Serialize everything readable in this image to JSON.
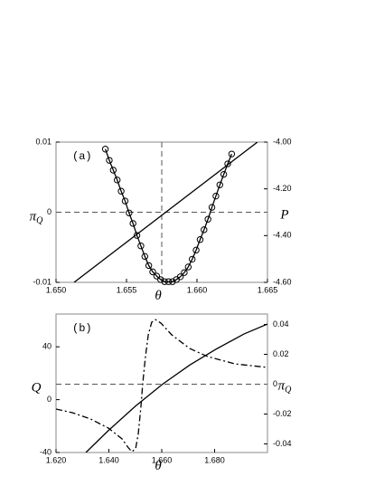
{
  "chart_data": [
    {
      "type": "line",
      "annotation": "(a)",
      "xlabel": "θ",
      "ylabel": "π",
      "ylabel_sub": "Q",
      "y2label": "P",
      "xlim": [
        1.65,
        1.665
      ],
      "xticks": [
        {
          "value": 1.65,
          "label": "1.650"
        },
        {
          "value": 1.655,
          "label": "1.655"
        },
        {
          "value": 1.66,
          "label": "1.660"
        },
        {
          "value": 1.665,
          "label": "1.665"
        }
      ],
      "ylim": [
        -0.01,
        0.01
      ],
      "yticks": [
        -0.01,
        0,
        0.01
      ],
      "y2lim": [
        -4.6,
        -4.0
      ],
      "y2ticks": [
        {
          "value": -4.0,
          "label": "-4.00"
        },
        {
          "value": -4.2,
          "label": "-4.20"
        },
        {
          "value": -4.4,
          "label": "-4.40"
        },
        {
          "value": -4.6,
          "label": "-4.60"
        }
      ],
      "hline": 0,
      "vline": 1.6575,
      "series": [
        {
          "color": "#000000",
          "dash": "solid",
          "marker": "circle",
          "x": [
            1.6535,
            1.65378,
            1.65406,
            1.65434,
            1.65462,
            1.6549,
            1.65518,
            1.65546,
            1.65574,
            1.65602,
            1.6563,
            1.65658,
            1.65686,
            1.65714,
            1.65742,
            1.6577,
            1.65798,
            1.65826,
            1.65854,
            1.65882,
            1.6591,
            1.65938,
            1.65966,
            1.65994,
            1.66022,
            1.6605,
            1.66078,
            1.66106,
            1.66134,
            1.66162,
            1.6619,
            1.66218,
            1.66246
          ],
          "values": [
            0.009,
            0.0074,
            0.006,
            0.0046,
            0.003,
            0.0016,
            -0.0001,
            -0.0016,
            -0.0033,
            -0.0048,
            -0.0063,
            -0.0076,
            -0.0085,
            -0.0091,
            -0.0096,
            -0.0099,
            -0.0099,
            -0.0099,
            -0.0096,
            -0.0092,
            -0.0086,
            -0.0078,
            -0.0067,
            -0.0054,
            -0.0039,
            -0.0025,
            -0.001,
            0.0007,
            0.0023,
            0.0039,
            0.0054,
            0.0069,
            0.0083
          ]
        },
        {
          "color": "#000000",
          "dash": "solid",
          "axis": "y2",
          "x": [
            1.65128,
            1.66429
          ],
          "values": [
            -4.6,
            -4.0
          ]
        }
      ]
    },
    {
      "type": "line",
      "annotation": "(b)",
      "xlabel": "θ",
      "ylabel": "Q",
      "y2label": "π",
      "y2label_sub": "Q",
      "xlim": [
        1.62,
        1.7
      ],
      "xticks": [
        {
          "value": 1.62,
          "label": "1.620"
        },
        {
          "value": 1.64,
          "label": "1.640"
        },
        {
          "value": 1.66,
          "label": "1.660"
        },
        {
          "value": 1.68,
          "label": "1.680"
        }
      ],
      "ylim": [
        -40,
        64.8
      ],
      "yticks": [
        -40,
        0,
        40
      ],
      "y2lim": [
        -0.0458,
        0.047
      ],
      "y2ticks": [
        -0.04,
        -0.02,
        0,
        0.02,
        0.04
      ],
      "y2hline": 0,
      "series": [
        {
          "color": "#000000",
          "dash": "solid",
          "x": [
            1.6313,
            1.6398,
            1.6501,
            1.6603,
            1.6706,
            1.6809,
            1.6911,
            1.7
          ],
          "values": [
            -40,
            -23.4,
            -4.8,
            11.7,
            26.2,
            38.6,
            49.7,
            57.2
          ]
        },
        {
          "color": "#000000",
          "dash": "dashdot",
          "axis": "y2",
          "x": [
            1.62,
            1.6262,
            1.633,
            1.6398,
            1.645,
            1.6474,
            1.6487,
            1.6501,
            1.6511,
            1.6521,
            1.6528,
            1.6538,
            1.6549,
            1.6562,
            1.6576,
            1.6597,
            1.6638,
            1.6706,
            1.6774,
            1.6877,
            1.7
          ],
          "values": [
            -0.0167,
            -0.0191,
            -0.0233,
            -0.0294,
            -0.0367,
            -0.0427,
            -0.0452,
            -0.0433,
            -0.0336,
            -0.0155,
            0.0003,
            0.0179,
            0.033,
            0.0415,
            0.0433,
            0.0409,
            0.033,
            0.0239,
            0.0185,
            0.0136,
            0.0112
          ]
        }
      ]
    }
  ]
}
